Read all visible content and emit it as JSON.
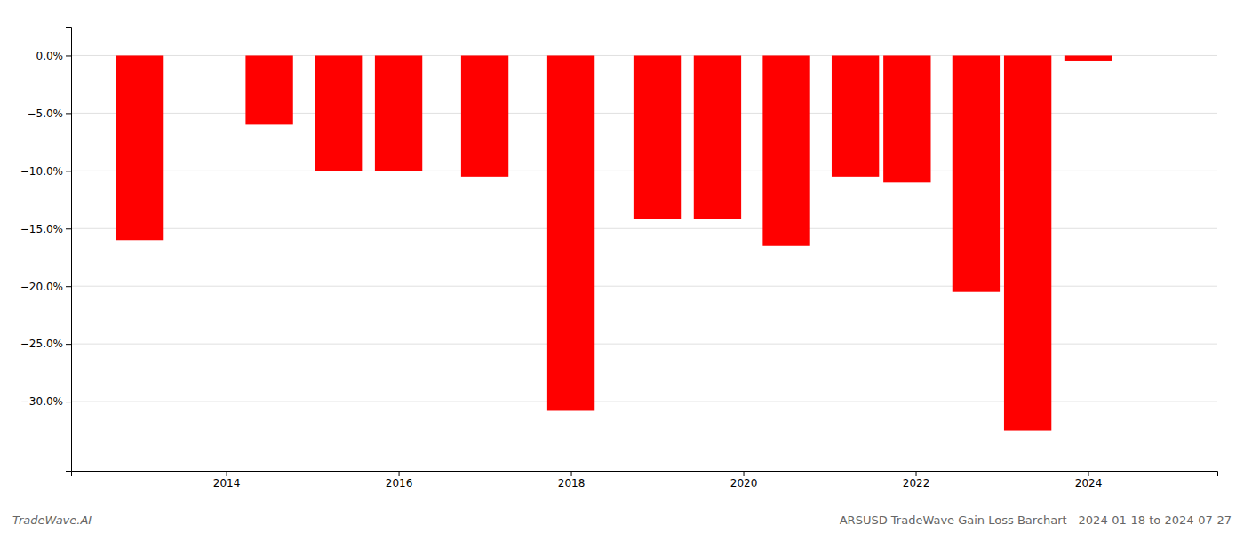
{
  "chart_data": {
    "type": "bar",
    "x": [
      2013.0,
      2014.5,
      2015.3,
      2016.0,
      2017.0,
      2018.0,
      2019.0,
      2019.7,
      2020.5,
      2021.3,
      2021.9,
      2022.7,
      2023.3,
      2024.0
    ],
    "values": [
      -16.0,
      -6.0,
      -10.0,
      -10.0,
      -10.5,
      -30.8,
      -14.2,
      -14.2,
      -16.5,
      -10.5,
      -11.0,
      -20.5,
      -32.5,
      -0.5
    ],
    "color": "#ff0000",
    "xlim": [
      2012.2,
      2025.5
    ],
    "ylim": [
      -36,
      2.5
    ],
    "xticks": [
      2014,
      2016,
      2018,
      2020,
      2022,
      2024
    ],
    "yticks": [
      {
        "value": 0.0,
        "label": "0.0%"
      },
      {
        "value": -5.0,
        "label": "−5.0%"
      },
      {
        "value": -10.0,
        "label": "−10.0%"
      },
      {
        "value": -15.0,
        "label": "−15.0%"
      },
      {
        "value": -20.0,
        "label": "−20.0%"
      },
      {
        "value": -25.0,
        "label": "−25.0%"
      },
      {
        "value": -30.0,
        "label": "−30.0%"
      }
    ],
    "grid": true,
    "annotations": [
      "TradeWave.AI",
      "ARSUSD TradeWave Gain Loss Barchart - 2024-01-18 to 2024-07-27"
    ]
  }
}
